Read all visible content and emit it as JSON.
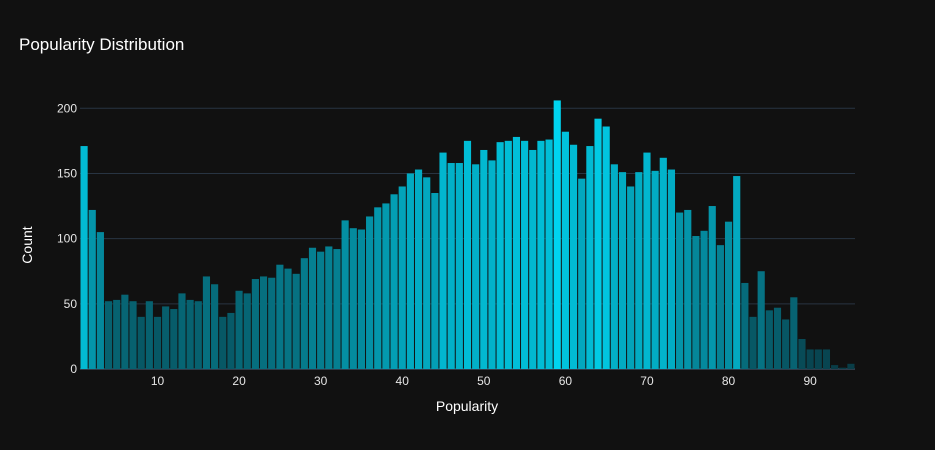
{
  "chart_data": {
    "type": "bar",
    "title": "Popularity Distribution",
    "xlabel": "Popularity",
    "ylabel": "Count",
    "x_bins": [
      1,
      2,
      3,
      4,
      5,
      6,
      7,
      8,
      9,
      10,
      11,
      12,
      13,
      14,
      15,
      16,
      17,
      18,
      19,
      20,
      21,
      22,
      23,
      24,
      25,
      26,
      27,
      28,
      29,
      30,
      31,
      32,
      33,
      34,
      35,
      36,
      37,
      38,
      39,
      40,
      41,
      42,
      43,
      44,
      45,
      46,
      47,
      48,
      49,
      50,
      51,
      52,
      53,
      54,
      55,
      56,
      57,
      58,
      59,
      60,
      61,
      62,
      63,
      64,
      65,
      66,
      67,
      68,
      69,
      70,
      71,
      72,
      73,
      74,
      75,
      76,
      77,
      78,
      79,
      80,
      81,
      82,
      83,
      84,
      85,
      86,
      87,
      88,
      89,
      90,
      91,
      92,
      93,
      94,
      95
    ],
    "values": [
      171,
      122,
      105,
      52,
      53,
      57,
      52,
      40,
      52,
      40,
      48,
      46,
      58,
      53,
      52,
      71,
      65,
      40,
      43,
      60,
      58,
      69,
      71,
      70,
      80,
      77,
      73,
      85,
      93,
      90,
      94,
      92,
      114,
      108,
      107,
      117,
      124,
      127,
      134,
      140,
      150,
      153,
      147,
      135,
      166,
      158,
      158,
      175,
      157,
      168,
      160,
      174,
      175,
      178,
      175,
      168,
      175,
      176,
      206,
      182,
      172,
      146,
      171,
      192,
      186,
      157,
      151,
      140,
      151,
      166,
      152,
      162,
      153,
      120,
      122,
      102,
      106,
      125,
      95,
      113,
      148,
      66,
      40,
      75,
      45,
      47,
      38,
      55,
      23,
      15,
      15,
      15,
      3,
      1,
      4
    ],
    "xlim": [
      0.5,
      95.5
    ],
    "ylim": [
      0,
      214
    ],
    "x_ticks": [
      10,
      20,
      30,
      40,
      50,
      60,
      70,
      80,
      90
    ],
    "y_ticks": [
      0,
      50,
      100,
      150,
      200
    ],
    "grid": true,
    "colorscale": [
      "#093a44",
      "#00d4f0"
    ],
    "background": "#111111"
  }
}
